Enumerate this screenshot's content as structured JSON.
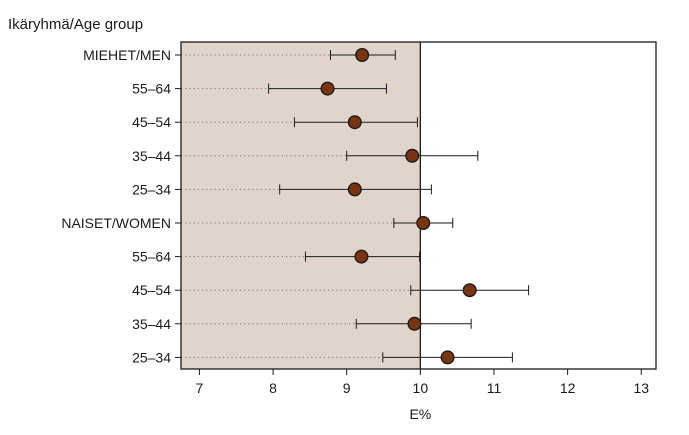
{
  "chart_data": {
    "type": "scatter",
    "subtype": "forest-plot-horizontal",
    "title": "",
    "ylabel": "Ikäryhmä/Age group",
    "xlabel": "E%",
    "xlim": [
      6.75,
      13.2
    ],
    "xticks": [
      7,
      8,
      9,
      10,
      11,
      12,
      13
    ],
    "reference_band": [
      6.75,
      10
    ],
    "colors": {
      "band": "#e1d5cb",
      "marker_fill": "#7a3410",
      "marker_stroke": "#1a1a1a",
      "axis": "#1a1a1a",
      "dotted_guide": "#777777"
    },
    "categories": [
      "MIEHET/MEN",
      "55–64",
      "45–54",
      "35–44",
      "25–34",
      "NAISET/WOMEN",
      "55–64",
      "45–54",
      "35–44",
      "25–34"
    ],
    "points": [
      {
        "estimate": 9.21,
        "lower": 8.78,
        "upper": 9.66
      },
      {
        "estimate": 8.74,
        "lower": 7.94,
        "upper": 9.54
      },
      {
        "estimate": 9.11,
        "lower": 8.29,
        "upper": 9.96
      },
      {
        "estimate": 9.89,
        "lower": 9.0,
        "upper": 10.78
      },
      {
        "estimate": 9.11,
        "lower": 8.09,
        "upper": 10.15
      },
      {
        "estimate": 10.04,
        "lower": 9.64,
        "upper": 10.44
      },
      {
        "estimate": 9.2,
        "lower": 8.44,
        "upper": 9.99
      },
      {
        "estimate": 10.67,
        "lower": 9.87,
        "upper": 11.47
      },
      {
        "estimate": 9.92,
        "lower": 9.13,
        "upper": 10.69
      },
      {
        "estimate": 10.37,
        "lower": 9.49,
        "upper": 11.25
      }
    ],
    "grid": false,
    "legend": "none"
  }
}
